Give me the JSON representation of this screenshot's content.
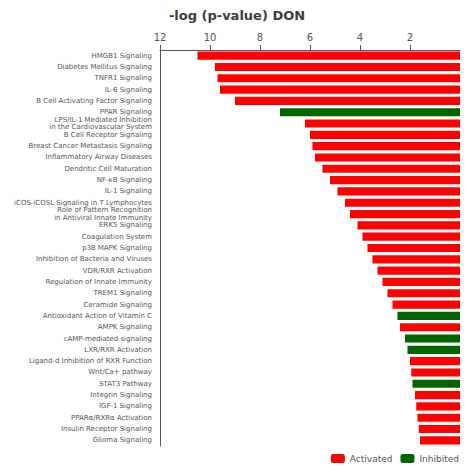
{
  "chart_data": {
    "type": "bar",
    "orientation": "horizontal",
    "title": "-log (p-value) DON",
    "categories": [
      "HMGB1 Signaling",
      "Diabetes Mellitus Signaling",
      "TNFR1 Signaling",
      "IL-6 Signaling",
      "B Cell Activating Factor Signaling",
      "PPAR Signaling",
      "LPS/IL-1 Mediated Inhibition\nin the Cardiovascular System",
      "B Cell Receptor Signaling",
      "Breast Cancer Metastasis Signaling",
      "Inflammatory Airway Diseases",
      "Dendritic Cell Maturation",
      "NF-κB Signaling",
      "IL-1 Signaling",
      "iCOS-iCOSL Signaling in T Lymphocytes",
      "Role of Pattern Recognition\nin Antiviral Innate Immunity",
      "ERK5 Signaling",
      "Coagulation System",
      "p38 MAPK Signaling",
      "Inhibition of Bacteria and Viruses",
      "VDR/RXR Activation",
      "Regulation of Innate Immunity",
      "TREM1 Signaling",
      "Ceramide Signaling",
      "Antioxidant Action of Vitamin C",
      "AMPK Signaling",
      "cAMP-mediated signaling",
      "LXR/RXR Activation",
      "Ligand-d Inhibition of RXR Function",
      "Wnt/Ca+ pathway",
      "STAT3 Pathway",
      "Integrin Signaling",
      "IGF-1 Signaling",
      "PPARα/RXRα Activation",
      "Insulin Receptor Signaling",
      "Glioma Signaling"
    ],
    "series": [
      {
        "name": "Activated",
        "color": "#ff0000",
        "values": [
          10.5,
          9.8,
          9.7,
          9.6,
          9.0,
          null,
          6.2,
          6.0,
          5.9,
          5.8,
          5.5,
          5.2,
          4.9,
          4.6,
          4.4,
          4.1,
          3.9,
          3.7,
          3.5,
          3.3,
          3.1,
          2.9,
          2.7,
          null,
          2.4,
          null,
          null,
          2.0,
          1.95,
          null,
          1.8,
          1.75,
          1.7,
          1.65,
          1.6
        ]
      },
      {
        "name": "Inhibited",
        "color": "#006400",
        "values": [
          null,
          null,
          null,
          null,
          null,
          7.2,
          null,
          null,
          null,
          null,
          null,
          null,
          null,
          null,
          null,
          null,
          null,
          null,
          null,
          null,
          null,
          null,
          null,
          2.5,
          null,
          2.2,
          2.1,
          null,
          null,
          1.9,
          null,
          null,
          null,
          null,
          null
        ]
      }
    ],
    "xlim": [
      12,
      0
    ],
    "xticks": [
      12,
      10,
      8,
      6,
      4,
      2
    ],
    "grid": false,
    "legend": "lower right"
  }
}
